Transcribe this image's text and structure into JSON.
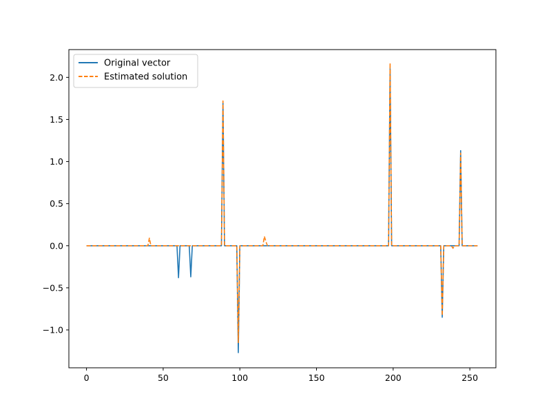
{
  "chart_data": {
    "type": "line",
    "title": "",
    "xlabel": "",
    "ylabel": "",
    "xlim": [
      -11.5,
      267
    ],
    "ylim": [
      -1.45,
      2.33
    ],
    "x_ticks": [
      0,
      50,
      100,
      150,
      200,
      250
    ],
    "y_ticks": [
      -1.0,
      -0.5,
      0.0,
      0.5,
      1.0,
      1.5,
      2.0
    ],
    "x_tick_labels": [
      "0",
      "50",
      "100",
      "150",
      "200",
      "250"
    ],
    "y_tick_labels": [
      "−1.0",
      "−0.5",
      "0.0",
      "0.5",
      "1.0",
      "1.5",
      "2.0"
    ],
    "grid": false,
    "legend_position": "upper-left",
    "x_domain": [
      0,
      255
    ],
    "series": [
      {
        "name": "Original vector",
        "color": "#1f77b4",
        "style": "solid",
        "spikes": [
          [
            60,
            -0.38
          ],
          [
            68,
            -0.37
          ],
          [
            89,
            1.7
          ],
          [
            99,
            -1.27
          ],
          [
            198,
            2.1
          ],
          [
            232,
            -0.85
          ],
          [
            244,
            1.13
          ]
        ]
      },
      {
        "name": "Estimated solution",
        "color": "#ff7f0e",
        "style": "dashed",
        "spikes": [
          [
            41,
            0.09
          ],
          [
            89,
            1.72
          ],
          [
            99,
            -1.15
          ],
          [
            116,
            0.11
          ],
          [
            117,
            0.05
          ],
          [
            198,
            2.17
          ],
          [
            232,
            -0.83
          ],
          [
            239,
            -0.03
          ],
          [
            244,
            1.1
          ]
        ]
      }
    ]
  }
}
